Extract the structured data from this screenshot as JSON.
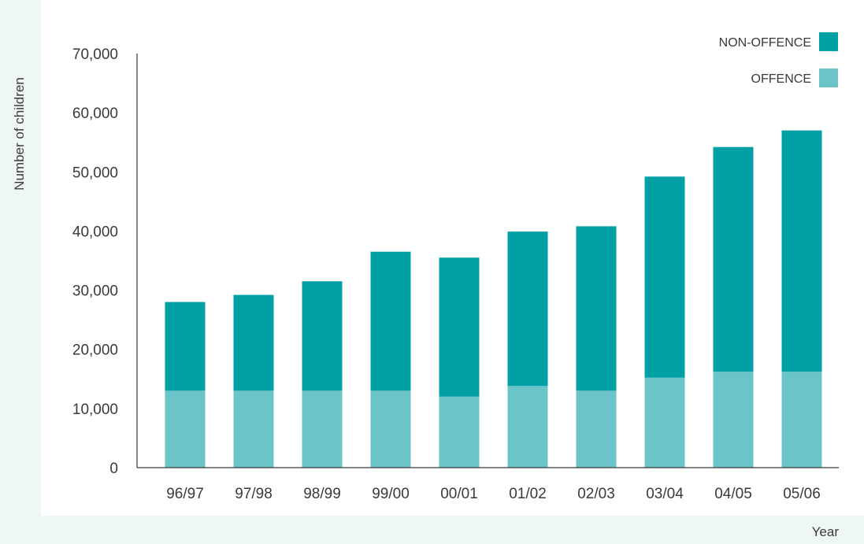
{
  "chart_data": {
    "type": "bar",
    "stacked": true,
    "title": "",
    "xlabel": "Year",
    "ylabel": "Number of children",
    "categories": [
      "96/97",
      "97/98",
      "98/99",
      "99/00",
      "00/01",
      "01/02",
      "02/03",
      "03/04",
      "04/05",
      "05/06"
    ],
    "series": [
      {
        "name": "OFFENCE",
        "color": "#6bc4c8",
        "values": [
          13000,
          13000,
          13000,
          13000,
          12000,
          13800,
          13000,
          15200,
          16200,
          16200
        ]
      },
      {
        "name": "NON-OFFENCE",
        "color": "#00a0a5",
        "values": [
          15000,
          16200,
          18500,
          23500,
          23500,
          26100,
          27800,
          34000,
          38000,
          40800
        ]
      }
    ],
    "ylim": [
      0,
      70000
    ],
    "yticks": [
      0,
      10000,
      20000,
      30000,
      40000,
      50000,
      60000,
      70000
    ],
    "ytick_labels": [
      "0",
      "10,000",
      "20,000",
      "30,000",
      "40,000",
      "50,000",
      "60,000",
      "70,000"
    ],
    "grid": false,
    "legend": {
      "placement": "top-right",
      "entries": [
        {
          "label": "NON-OFFENCE",
          "color": "#00a0a5"
        },
        {
          "label": "OFFENCE",
          "color": "#6bc4c8"
        }
      ]
    }
  }
}
